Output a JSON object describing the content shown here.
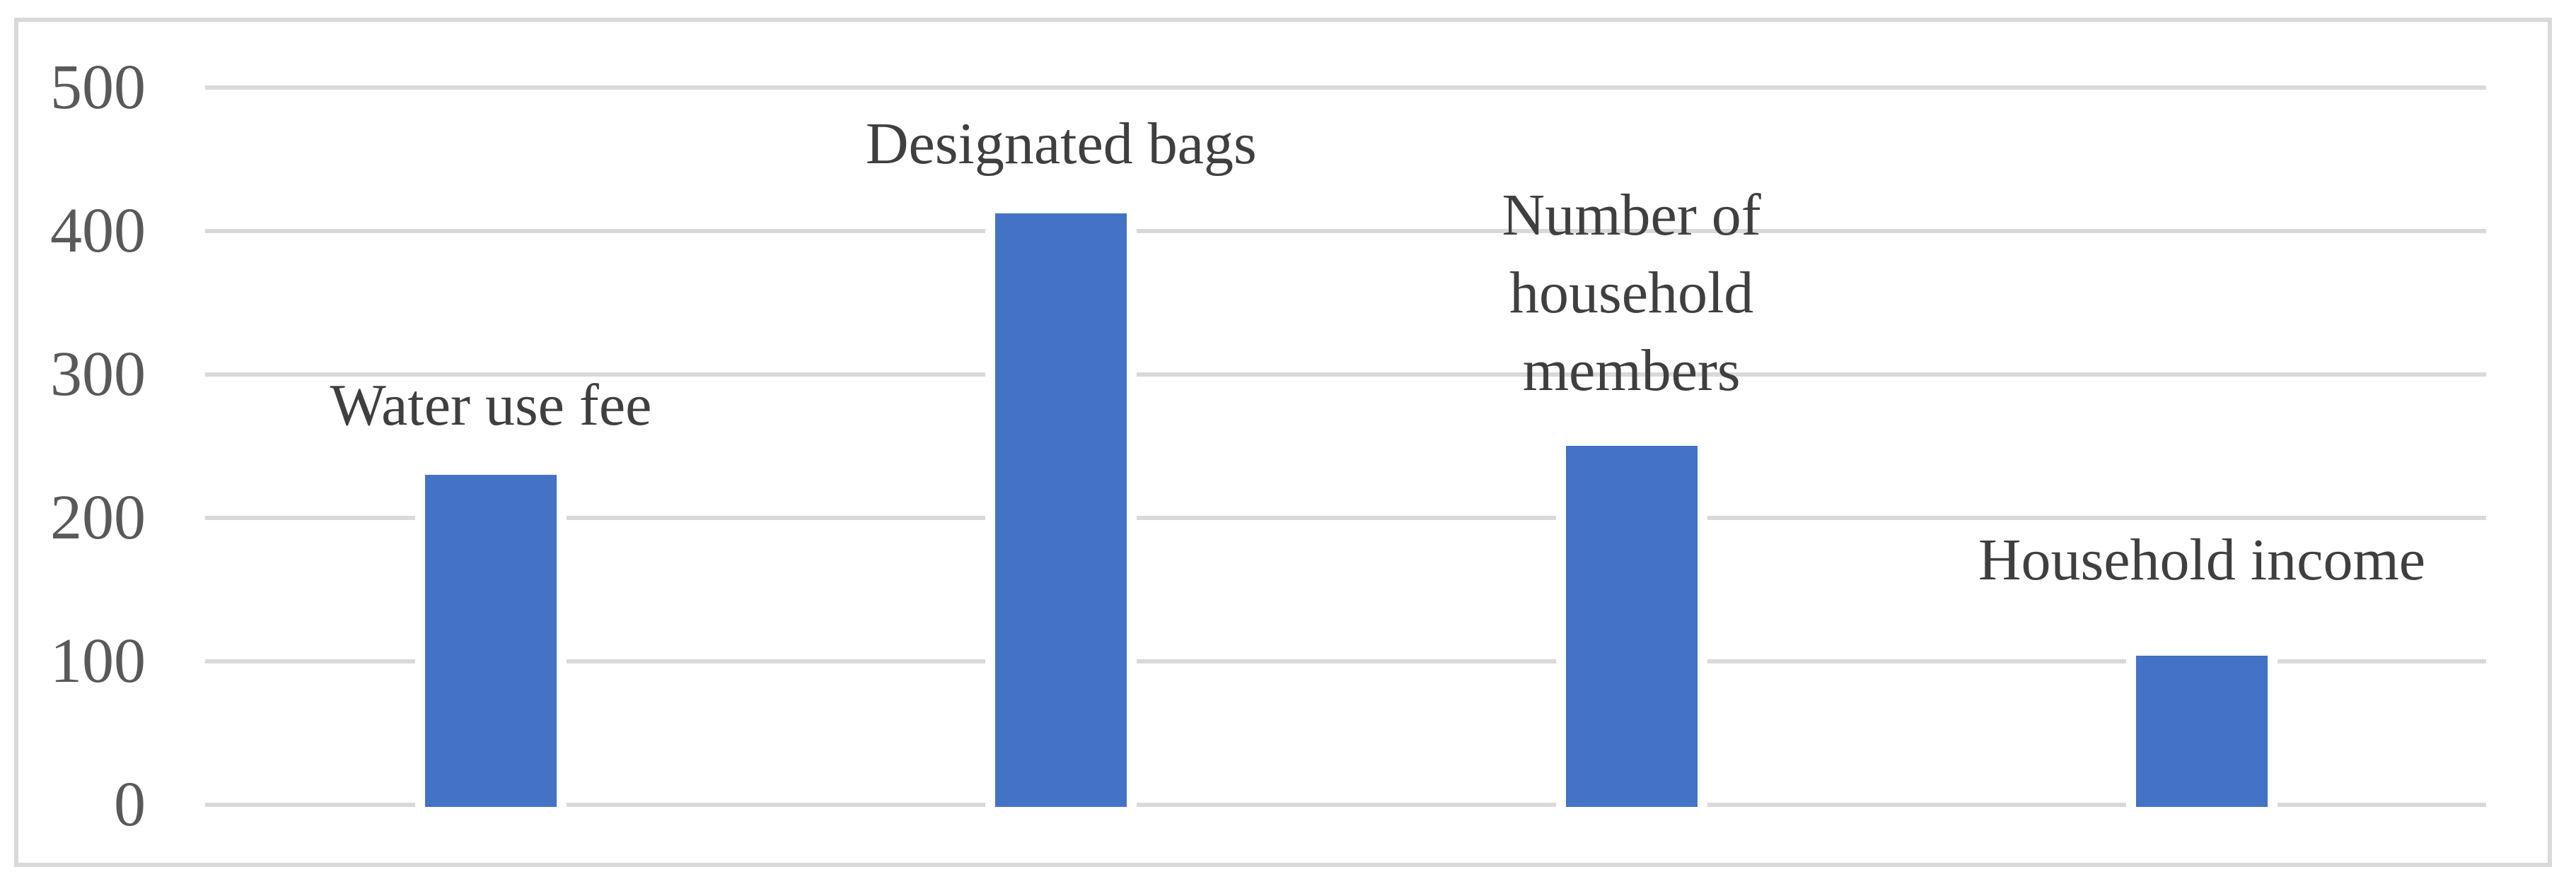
{
  "chart_data": {
    "type": "bar",
    "categories": [
      "Water use fee",
      "Designated bags",
      "Number of household members",
      "Household income"
    ],
    "values": [
      230,
      412,
      250,
      104
    ],
    "title": "",
    "xlabel": "",
    "ylabel": "",
    "ylim": [
      0,
      500
    ],
    "yticks": [
      0,
      100,
      200,
      300,
      400,
      500
    ],
    "ytick_labels": [
      "0",
      "100",
      "200",
      "300",
      "400",
      "500"
    ],
    "grid": "horizontal-major-gridlines",
    "legend": "none",
    "bar_label_position": "above-bar"
  },
  "colors": {
    "bar_fill": "#4472C4",
    "gridline": "#D9D9D9",
    "frame_border": "#D9D9D9",
    "tick_text": "#595959",
    "label_text": "#3F3F3F",
    "background": "#FFFFFF"
  }
}
